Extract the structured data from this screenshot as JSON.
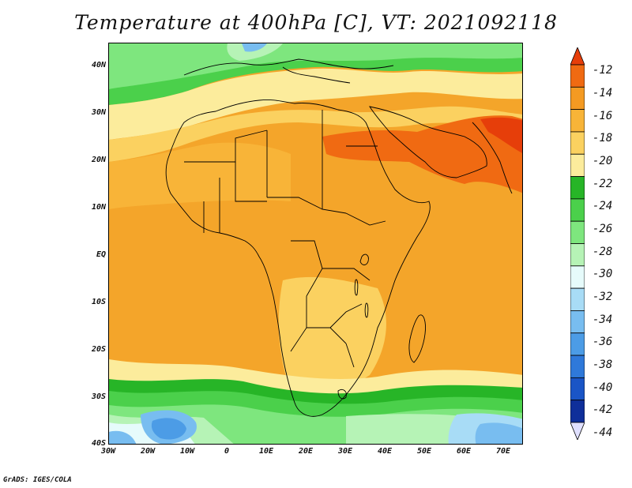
{
  "title": "Temperature at 400hPa [C], VT: 2021092118",
  "footer": "GrADS: IGES/COLA",
  "map": {
    "lon_range": [
      -30,
      75
    ],
    "lat_range": [
      -40,
      45
    ],
    "lat_ticks": [
      "40N",
      "30N",
      "20N",
      "10N",
      "EQ",
      "10S",
      "20S",
      "30S",
      "40S"
    ],
    "lon_ticks": [
      "30W",
      "20W",
      "10W",
      "0",
      "10E",
      "20E",
      "30E",
      "40E",
      "50E",
      "60E",
      "70E"
    ]
  },
  "colorbar": {
    "levels": [
      "-12",
      "-14",
      "-16",
      "-18",
      "-20",
      "-22",
      "-24",
      "-26",
      "-28",
      "-30",
      "-32",
      "-34",
      "-36",
      "-38",
      "-40",
      "-42",
      "-44"
    ],
    "colors": [
      "#e63e0a",
      "#f06a12",
      "#f49a22",
      "#f8b438",
      "#fbd160",
      "#fcec9c",
      "#27b527",
      "#4bd04b",
      "#7ee67e",
      "#b6f3b6",
      "#e6fbfb",
      "#a8dcf6",
      "#78bdf0",
      "#4c9ce6",
      "#2f79da",
      "#1a55c6",
      "#0f2f9a",
      "#0a1870"
    ]
  }
}
